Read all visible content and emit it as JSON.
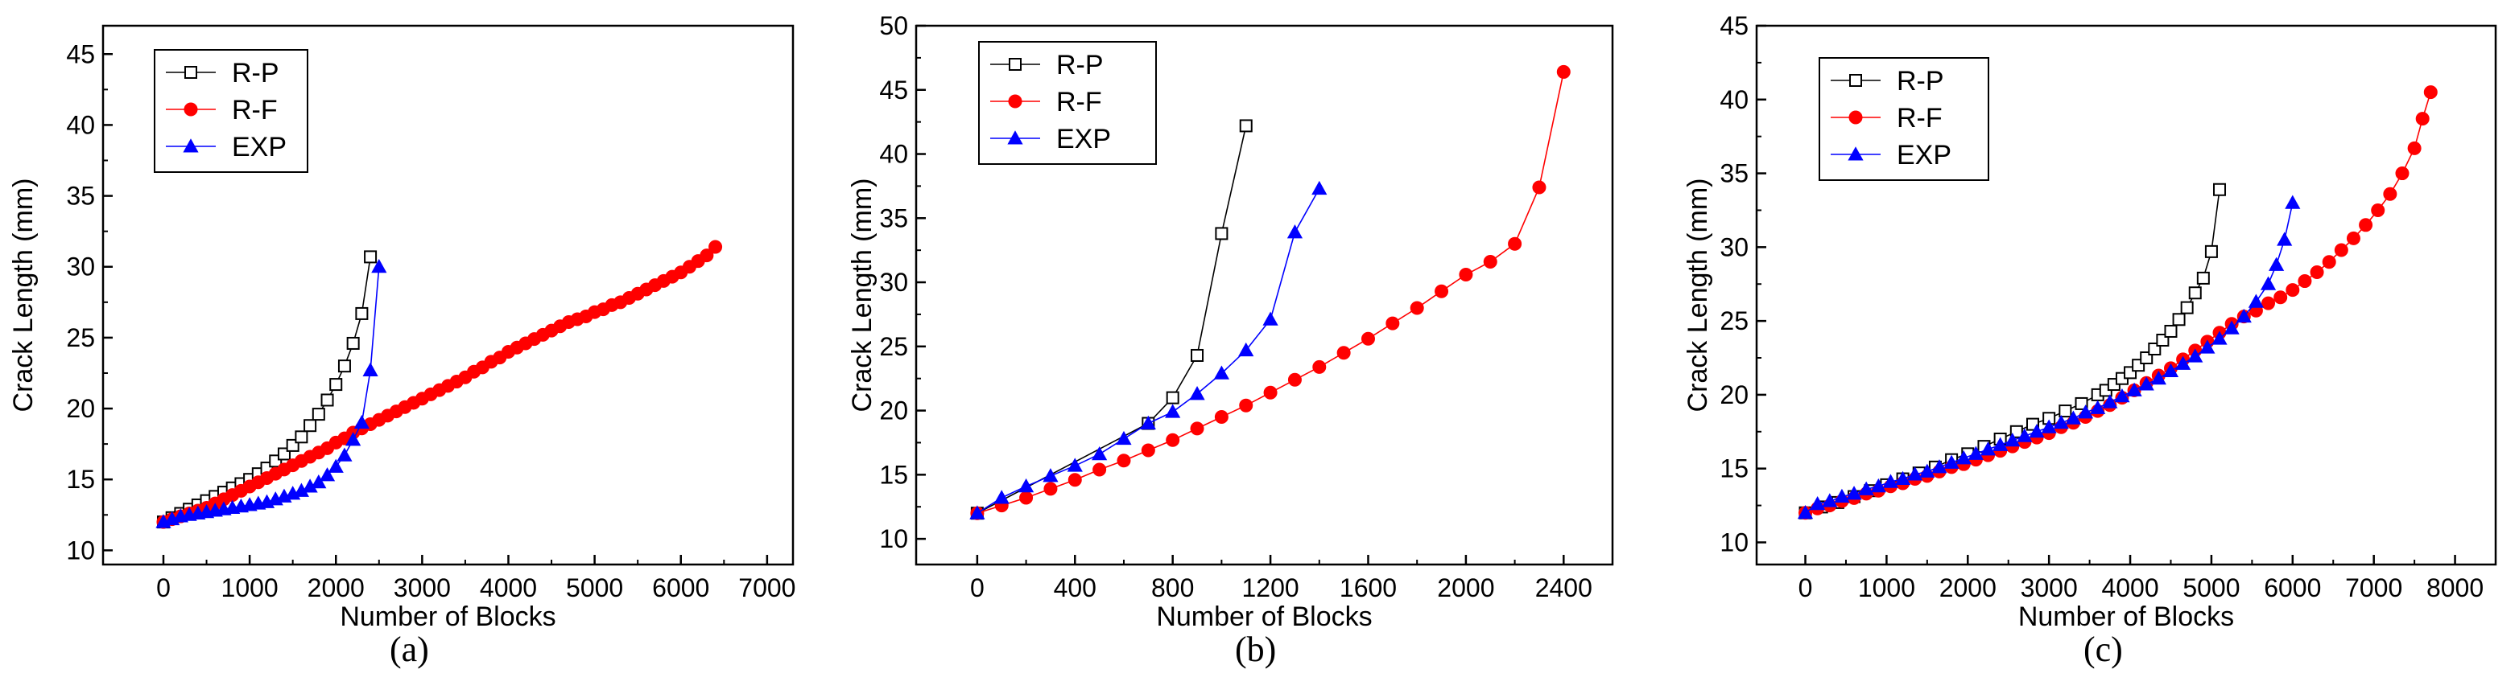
{
  "chart_data": [
    {
      "type": "line",
      "panel_label": "(a)",
      "xlabel": "Number of Blocks",
      "ylabel": "Crack Length (mm)",
      "xlim": [
        -700,
        7300
      ],
      "ylim": [
        9,
        47
      ],
      "xticks": [
        0,
        1000,
        2000,
        3000,
        4000,
        5000,
        6000,
        7000
      ],
      "yticks": [
        10,
        15,
        20,
        25,
        30,
        35,
        40,
        45
      ],
      "legend_position": "top-left",
      "series": [
        {
          "name": "R-P",
          "color": "#000000",
          "marker": "square-open",
          "x": [
            0,
            100,
            200,
            300,
            400,
            500,
            600,
            700,
            800,
            900,
            1000,
            1100,
            1200,
            1300,
            1400,
            1500,
            1600,
            1700,
            1800,
            1900,
            2000,
            2100,
            2200,
            2300,
            2400
          ],
          "y": [
            12.0,
            12.3,
            12.6,
            12.9,
            13.2,
            13.5,
            13.8,
            14.1,
            14.4,
            14.7,
            15.0,
            15.4,
            15.8,
            16.3,
            16.8,
            17.4,
            18.0,
            18.8,
            19.6,
            20.6,
            21.7,
            23.0,
            24.6,
            26.7,
            30.7
          ]
        },
        {
          "name": "R-F",
          "color": "#ff0000",
          "marker": "circle-filled",
          "x": [
            0,
            100,
            200,
            300,
            400,
            500,
            600,
            700,
            800,
            900,
            1000,
            1100,
            1200,
            1300,
            1400,
            1500,
            1600,
            1700,
            1800,
            1900,
            2000,
            2100,
            2200,
            2300,
            2400,
            2500,
            2600,
            2700,
            2800,
            2900,
            3000,
            3100,
            3200,
            3300,
            3400,
            3500,
            3600,
            3700,
            3800,
            3900,
            4000,
            4100,
            4200,
            4300,
            4400,
            4500,
            4600,
            4700,
            4800,
            4900,
            5000,
            5100,
            5200,
            5300,
            5400,
            5500,
            5600,
            5700,
            5800,
            5900,
            6000,
            6100,
            6200,
            6300,
            6400
          ],
          "y": [
            12.0,
            12.2,
            12.4,
            12.6,
            12.8,
            13.0,
            13.3,
            13.6,
            13.9,
            14.2,
            14.5,
            14.8,
            15.1,
            15.4,
            15.7,
            16.0,
            16.3,
            16.6,
            16.9,
            17.2,
            17.6,
            17.9,
            18.3,
            18.6,
            18.9,
            19.2,
            19.5,
            19.8,
            20.1,
            20.4,
            20.7,
            21.0,
            21.3,
            21.6,
            21.9,
            22.2,
            22.6,
            22.9,
            23.3,
            23.6,
            24.0,
            24.3,
            24.6,
            24.9,
            25.2,
            25.5,
            25.8,
            26.1,
            26.3,
            26.5,
            26.8,
            27.0,
            27.3,
            27.5,
            27.8,
            28.1,
            28.4,
            28.7,
            29.0,
            29.3,
            29.6,
            30.0,
            30.4,
            30.8,
            31.4
          ]
        },
        {
          "name": "EXP",
          "color": "#0000ff",
          "marker": "triangle-filled",
          "x": [
            0,
            100,
            200,
            300,
            400,
            500,
            600,
            700,
            800,
            900,
            1000,
            1100,
            1200,
            1300,
            1400,
            1500,
            1600,
            1700,
            1800,
            1900,
            2000,
            2100,
            2200,
            2300,
            2400,
            2500
          ],
          "y": [
            12.0,
            12.2,
            12.4,
            12.5,
            12.6,
            12.7,
            12.8,
            12.9,
            13.0,
            13.1,
            13.2,
            13.3,
            13.4,
            13.6,
            13.8,
            14.0,
            14.2,
            14.5,
            14.8,
            15.3,
            15.9,
            16.7,
            17.8,
            19.0,
            22.7,
            30.0
          ]
        }
      ]
    },
    {
      "type": "line",
      "panel_label": "(b)",
      "xlabel": "Number of Blocks",
      "ylabel": "Crack Length (mm)",
      "xlim": [
        -250,
        2600
      ],
      "ylim": [
        8,
        50
      ],
      "xticks": [
        0,
        400,
        800,
        1200,
        1600,
        2000,
        2400
      ],
      "yticks": [
        10,
        15,
        20,
        25,
        30,
        35,
        40,
        45,
        50
      ],
      "legend_position": "top-left",
      "series": [
        {
          "name": "R-P",
          "color": "#000000",
          "marker": "square-open",
          "x": [
            0,
            700,
            800,
            900,
            1000,
            1100
          ],
          "y": [
            12.0,
            19.0,
            21.0,
            24.3,
            33.8,
            42.2
          ]
        },
        {
          "name": "R-F",
          "color": "#ff0000",
          "marker": "circle-filled",
          "x": [
            0,
            100,
            200,
            300,
            400,
            500,
            600,
            700,
            800,
            900,
            1000,
            1100,
            1200,
            1300,
            1400,
            1500,
            1600,
            1700,
            1800,
            1900,
            2000,
            2100,
            2200,
            2300,
            2400
          ],
          "y": [
            12.0,
            12.6,
            13.2,
            13.9,
            14.6,
            15.4,
            16.1,
            16.9,
            17.7,
            18.6,
            19.5,
            20.4,
            21.4,
            22.4,
            23.4,
            24.5,
            25.6,
            26.8,
            28.0,
            29.3,
            30.6,
            31.6,
            33.0,
            37.4,
            46.4
          ]
        },
        {
          "name": "EXP",
          "color": "#0000ff",
          "marker": "triangle-filled",
          "x": [
            0,
            100,
            200,
            300,
            400,
            500,
            600,
            700,
            800,
            900,
            1000,
            1100,
            1200,
            1300,
            1400
          ],
          "y": [
            12.0,
            13.2,
            14.1,
            14.9,
            15.7,
            16.6,
            17.8,
            19.0,
            19.9,
            21.3,
            22.9,
            24.7,
            27.1,
            33.9,
            37.3
          ]
        }
      ]
    },
    {
      "type": "line",
      "panel_label": "(c)",
      "xlabel": "Number of Blocks",
      "ylabel": "Crack Length (mm)",
      "xlim": [
        -600,
        8500
      ],
      "ylim": [
        8.5,
        45
      ],
      "xticks": [
        0,
        1000,
        2000,
        3000,
        4000,
        5000,
        6000,
        7000,
        8000
      ],
      "yticks": [
        10,
        15,
        20,
        25,
        30,
        35,
        40,
        45
      ],
      "legend_position": "top-left",
      "series": [
        {
          "name": "R-P",
          "color": "#000000",
          "marker": "square-open",
          "x": [
            0,
            200,
            400,
            600,
            800,
            1000,
            1200,
            1400,
            1600,
            1800,
            2000,
            2200,
            2400,
            2600,
            2800,
            3000,
            3200,
            3400,
            3600,
            3700,
            3800,
            3900,
            4000,
            4100,
            4200,
            4300,
            4400,
            4500,
            4600,
            4700,
            4800,
            4900,
            5000,
            5100
          ],
          "y": [
            12.0,
            12.4,
            12.7,
            13.1,
            13.5,
            13.9,
            14.3,
            14.7,
            15.1,
            15.6,
            16.0,
            16.5,
            17.0,
            17.5,
            18.0,
            18.4,
            18.9,
            19.4,
            20.0,
            20.3,
            20.7,
            21.1,
            21.5,
            22.0,
            22.5,
            23.1,
            23.7,
            24.3,
            25.1,
            25.9,
            26.9,
            27.9,
            29.7,
            33.9
          ]
        },
        {
          "name": "R-F",
          "color": "#ff0000",
          "marker": "circle-filled",
          "x": [
            0,
            150,
            300,
            450,
            600,
            750,
            900,
            1050,
            1200,
            1350,
            1500,
            1650,
            1800,
            1950,
            2100,
            2250,
            2400,
            2550,
            2700,
            2850,
            3000,
            3150,
            3300,
            3450,
            3600,
            3750,
            3900,
            4050,
            4200,
            4350,
            4500,
            4650,
            4800,
            4950,
            5100,
            5250,
            5400,
            5550,
            5700,
            5850,
            6000,
            6150,
            6300,
            6450,
            6600,
            6750,
            6900,
            7050,
            7200,
            7350,
            7500,
            7600,
            7700
          ],
          "y": [
            12.0,
            12.3,
            12.5,
            12.8,
            13.0,
            13.3,
            13.5,
            13.8,
            14.0,
            14.3,
            14.5,
            14.8,
            15.1,
            15.3,
            15.6,
            15.9,
            16.2,
            16.5,
            16.8,
            17.1,
            17.4,
            17.8,
            18.1,
            18.5,
            18.9,
            19.3,
            19.8,
            20.3,
            20.8,
            21.3,
            21.8,
            22.4,
            23.0,
            23.6,
            24.2,
            24.8,
            25.3,
            25.7,
            26.2,
            26.6,
            27.1,
            27.7,
            28.3,
            29.0,
            29.8,
            30.6,
            31.5,
            32.5,
            33.6,
            35.0,
            36.7,
            38.7,
            40.5
          ]
        },
        {
          "name": "EXP",
          "color": "#0000ff",
          "marker": "triangle-filled",
          "x": [
            0,
            150,
            300,
            450,
            600,
            750,
            900,
            1050,
            1200,
            1350,
            1500,
            1650,
            1800,
            1950,
            2100,
            2250,
            2400,
            2550,
            2700,
            2850,
            3000,
            3150,
            3300,
            3450,
            3600,
            3750,
            3900,
            4050,
            4200,
            4350,
            4500,
            4650,
            4800,
            4950,
            5100,
            5250,
            5400,
            5550,
            5700,
            5800,
            5900,
            6000
          ],
          "y": [
            12.0,
            12.6,
            12.8,
            13.1,
            13.3,
            13.6,
            13.8,
            14.1,
            14.3,
            14.6,
            14.8,
            15.1,
            15.4,
            15.7,
            16.0,
            16.3,
            16.6,
            16.9,
            17.2,
            17.5,
            17.8,
            18.1,
            18.4,
            18.8,
            19.1,
            19.5,
            19.9,
            20.3,
            20.7,
            21.1,
            21.6,
            22.1,
            22.6,
            23.2,
            23.8,
            24.5,
            25.3,
            26.3,
            27.5,
            28.8,
            30.5,
            33.0
          ]
        }
      ]
    }
  ]
}
